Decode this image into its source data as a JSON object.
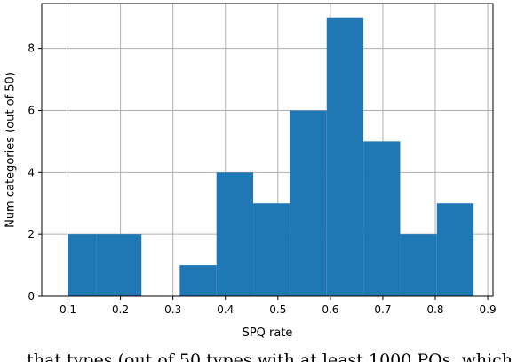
{
  "chart_data": {
    "type": "bar",
    "xlabel": "SPQ rate",
    "ylabel": "Num categories (out of 50)",
    "xlim": [
      0.05,
      0.91
    ],
    "ylim": [
      0,
      9.45
    ],
    "grid": true,
    "xticks": [
      "0.1",
      "0.2",
      "0.3",
      "0.4",
      "0.5",
      "0.6",
      "0.7",
      "0.8",
      "0.9"
    ],
    "yticks": [
      "0",
      "2",
      "4",
      "6",
      "8"
    ],
    "bar_color": "#1f77b4",
    "bins": [
      {
        "x0": 0.1,
        "x1": 0.154,
        "value": 2
      },
      {
        "x0": 0.154,
        "x1": 0.24,
        "value": 2
      },
      {
        "x0": 0.24,
        "x1": 0.313,
        "value": 0
      },
      {
        "x0": 0.313,
        "x1": 0.383,
        "value": 1
      },
      {
        "x0": 0.383,
        "x1": 0.453,
        "value": 4
      },
      {
        "x0": 0.453,
        "x1": 0.523,
        "value": 3
      },
      {
        "x0": 0.523,
        "x1": 0.593,
        "value": 6
      },
      {
        "x0": 0.593,
        "x1": 0.663,
        "value": 9
      },
      {
        "x0": 0.663,
        "x1": 0.733,
        "value": 5
      },
      {
        "x0": 0.733,
        "x1": 0.803,
        "value": 2
      },
      {
        "x0": 0.803,
        "x1": 0.873,
        "value": 3
      }
    ]
  },
  "caption": "... that types (out of 50 types with at least 1000 PQs, which..."
}
